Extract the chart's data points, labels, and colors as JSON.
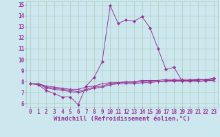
{
  "xlabel": "Windchill (Refroidissement éolien,°C)",
  "bg_color": "#cce8ee",
  "grid_color": "#aaccbb",
  "line_color": "#993399",
  "xlim": [
    -0.5,
    23.5
  ],
  "ylim": [
    5.7,
    15.3
  ],
  "x_ticks": [
    0,
    1,
    2,
    3,
    4,
    5,
    6,
    7,
    8,
    9,
    10,
    11,
    12,
    13,
    14,
    15,
    16,
    17,
    18,
    19,
    20,
    21,
    22,
    23
  ],
  "y_ticks": [
    6,
    7,
    8,
    9,
    10,
    11,
    12,
    13,
    14,
    15
  ],
  "series1_x": [
    0,
    1,
    2,
    3,
    4,
    5,
    6,
    7,
    8,
    9,
    10,
    11,
    12,
    13,
    14,
    15,
    16,
    17,
    18,
    19,
    20,
    21,
    22,
    23
  ],
  "series1_y": [
    7.8,
    7.7,
    7.2,
    6.9,
    6.6,
    6.6,
    5.9,
    7.6,
    8.4,
    9.8,
    14.9,
    13.3,
    13.6,
    13.5,
    13.9,
    12.9,
    11.0,
    9.1,
    9.3,
    8.1,
    8.1,
    8.2,
    8.1,
    8.3
  ],
  "series2_x": [
    0,
    1,
    2,
    3,
    4,
    5,
    6,
    7,
    8,
    9,
    10,
    11,
    12,
    13,
    14,
    15,
    16,
    17,
    18,
    19,
    20,
    21,
    22,
    23
  ],
  "series2_y": [
    7.8,
    7.8,
    7.6,
    7.5,
    7.4,
    7.3,
    7.3,
    7.5,
    7.6,
    7.8,
    7.9,
    7.9,
    8.0,
    8.0,
    8.1,
    8.1,
    8.1,
    8.2,
    8.2,
    8.2,
    8.2,
    8.2,
    8.2,
    8.3
  ],
  "series3_x": [
    0,
    1,
    2,
    3,
    4,
    5,
    6,
    7,
    8,
    9,
    10,
    11,
    12,
    13,
    14,
    15,
    16,
    17,
    18,
    19,
    20,
    21,
    22,
    23
  ],
  "series3_y": [
    7.8,
    7.8,
    7.5,
    7.4,
    7.3,
    7.2,
    7.1,
    7.3,
    7.5,
    7.6,
    7.8,
    7.9,
    7.9,
    7.9,
    8.0,
    8.0,
    8.0,
    8.1,
    8.1,
    8.1,
    8.1,
    8.1,
    8.2,
    8.2
  ],
  "series4_x": [
    0,
    1,
    2,
    3,
    4,
    5,
    6,
    7,
    8,
    9,
    10,
    11,
    12,
    13,
    14,
    15,
    16,
    17,
    18,
    19,
    20,
    21,
    22,
    23
  ],
  "series4_y": [
    7.8,
    7.8,
    7.4,
    7.3,
    7.2,
    7.1,
    7.0,
    7.2,
    7.4,
    7.5,
    7.7,
    7.8,
    7.8,
    7.8,
    7.9,
    7.9,
    8.0,
    8.0,
    8.0,
    8.0,
    8.0,
    8.0,
    8.1,
    8.1
  ],
  "tick_fontsize": 5.5,
  "label_fontsize": 6.5
}
